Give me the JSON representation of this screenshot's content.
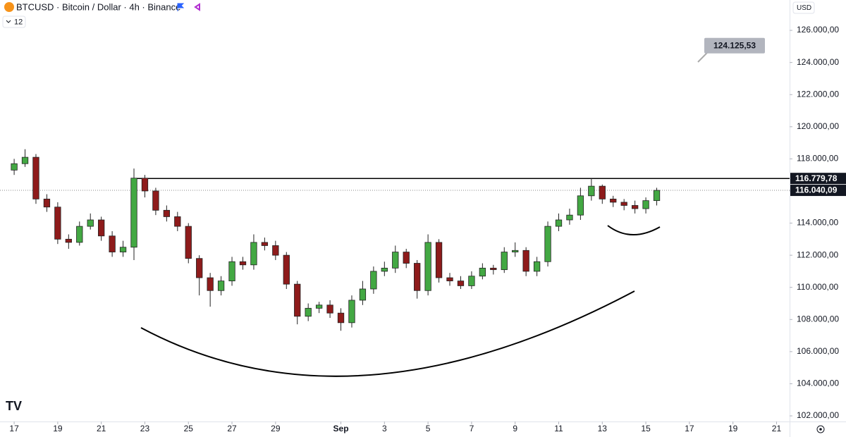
{
  "chart_data": {
    "type": "candlestick",
    "title": "BTCUSD · Bitcoin / Dollar · 4h · Binance",
    "interval_badge": "12",
    "currency": "USD",
    "x": [
      0,
      0.5,
      1,
      1.5,
      2,
      2.5,
      3,
      3.5,
      4,
      4.5,
      5,
      5.5,
      6,
      6.5,
      7,
      7.5,
      8,
      8.5,
      9,
      9.5,
      10,
      10.5,
      11,
      11.5,
      12,
      12.5,
      13,
      13.5,
      14,
      14.5,
      15,
      15.5,
      16,
      16.5,
      17,
      17.5,
      18,
      18.5,
      19,
      19.5,
      20,
      20.5,
      21,
      21.5,
      22,
      22.5,
      23,
      23.5,
      24,
      24.5,
      25,
      25.5,
      26,
      26.5,
      27,
      27.5,
      28,
      28.5,
      29,
      29.5
    ],
    "open": [
      117300,
      117700,
      118100,
      115500,
      115000,
      113000,
      112800,
      113800,
      114200,
      113200,
      112200,
      112500,
      116800,
      116000,
      114800,
      114400,
      113800,
      111800,
      110600,
      109800,
      110400,
      111600,
      111400,
      112800,
      112600,
      112000,
      110200,
      108200,
      108700,
      108900,
      108400,
      107800,
      109200,
      109900,
      111000,
      111200,
      112200,
      111500,
      109800,
      112800,
      110600,
      110400,
      110100,
      110700,
      111200,
      111100,
      112200,
      112300,
      111000,
      111600,
      113800,
      114200,
      114500,
      115700,
      116300,
      115500,
      115300,
      115100,
      114900,
      115400
    ],
    "high": [
      118000,
      118600,
      118300,
      115800,
      115300,
      113300,
      114100,
      114600,
      114400,
      113500,
      112900,
      117400,
      117000,
      116200,
      115100,
      114700,
      114000,
      112000,
      110900,
      110700,
      111900,
      111900,
      113300,
      113100,
      112900,
      112200,
      110400,
      109000,
      109100,
      109200,
      108700,
      109500,
      110400,
      111300,
      111600,
      112600,
      112400,
      111700,
      113300,
      113000,
      110900,
      110700,
      111000,
      111500,
      111400,
      112500,
      112800,
      112500,
      111900,
      114100,
      114600,
      114900,
      116200,
      116780,
      116400,
      115700,
      115500,
      115400,
      115600,
      116200
    ],
    "low": [
      117000,
      117500,
      115200,
      114700,
      112700,
      112400,
      112600,
      113600,
      112900,
      111900,
      111900,
      111700,
      115600,
      114500,
      114100,
      113500,
      111500,
      109500,
      108800,
      109500,
      110100,
      111100,
      111100,
      112300,
      111700,
      109900,
      107700,
      107900,
      108400,
      108100,
      107300,
      107500,
      108900,
      109600,
      110700,
      110900,
      111200,
      109300,
      109500,
      110300,
      110100,
      109900,
      109900,
      110500,
      110800,
      110900,
      111900,
      110700,
      110700,
      111300,
      113500,
      113900,
      114200,
      115400,
      115200,
      115000,
      114800,
      114600,
      114600,
      115100
    ],
    "close": [
      117700,
      118100,
      115500,
      115000,
      113000,
      112800,
      113800,
      114200,
      113200,
      112200,
      112500,
      116800,
      116000,
      114800,
      114400,
      113800,
      111800,
      110600,
      109800,
      110400,
      111600,
      111400,
      112800,
      112600,
      112000,
      110200,
      108200,
      108700,
      108900,
      108400,
      107800,
      109200,
      109900,
      111000,
      111200,
      112200,
      111500,
      109800,
      112800,
      110600,
      110400,
      110100,
      110700,
      111200,
      111100,
      112200,
      112300,
      111000,
      111600,
      113800,
      114200,
      114500,
      115700,
      116300,
      115500,
      115300,
      115100,
      114900,
      115400,
      116040.09
    ],
    "up_color": "#43a843",
    "down_color": "#8e1b1b",
    "xlim": [
      -0.65,
      35.6
    ],
    "xticks": [
      {
        "value": 0,
        "label": "17"
      },
      {
        "value": 2,
        "label": "19"
      },
      {
        "value": 4,
        "label": "21"
      },
      {
        "value": 6,
        "label": "23"
      },
      {
        "value": 8,
        "label": "25"
      },
      {
        "value": 10,
        "label": "27"
      },
      {
        "value": 12,
        "label": "29"
      },
      {
        "value": 15,
        "label": "Sep"
      },
      {
        "value": 17,
        "label": "3"
      },
      {
        "value": 19,
        "label": "5"
      },
      {
        "value": 21,
        "label": "7"
      },
      {
        "value": 23,
        "label": "9"
      },
      {
        "value": 25,
        "label": "11"
      },
      {
        "value": 27,
        "label": "13"
      },
      {
        "value": 29,
        "label": "15"
      },
      {
        "value": 31,
        "label": "17"
      },
      {
        "value": 33,
        "label": "19"
      },
      {
        "value": 35,
        "label": "21"
      }
    ],
    "ylim": [
      101650,
      127890
    ],
    "yticks": [
      {
        "value": 102000,
        "label": "102.000,00"
      },
      {
        "value": 104000,
        "label": "104.000,00"
      },
      {
        "value": 106000,
        "label": "106.000,00"
      },
      {
        "value": 108000,
        "label": "108.000,00"
      },
      {
        "value": 110000,
        "label": "110.000,00"
      },
      {
        "value": 112000,
        "label": "112.000,00"
      },
      {
        "value": 114000,
        "label": "114.000,00"
      },
      {
        "value": 116000,
        "label": "116.000,00"
      },
      {
        "value": 118000,
        "label": "118.000,00"
      },
      {
        "value": 120000,
        "label": "120.000,00"
      },
      {
        "value": 122000,
        "label": "122.000,00"
      },
      {
        "value": 124000,
        "label": "124.000,00"
      },
      {
        "value": 126000,
        "label": "126.000,00"
      }
    ],
    "resistance": {
      "value": 116779.78,
      "label": "116.779,78"
    },
    "last_price": {
      "value": 116040.09,
      "label": "116.040,09"
    },
    "target": {
      "value": 124125.53,
      "label": "124.125,53"
    }
  }
}
